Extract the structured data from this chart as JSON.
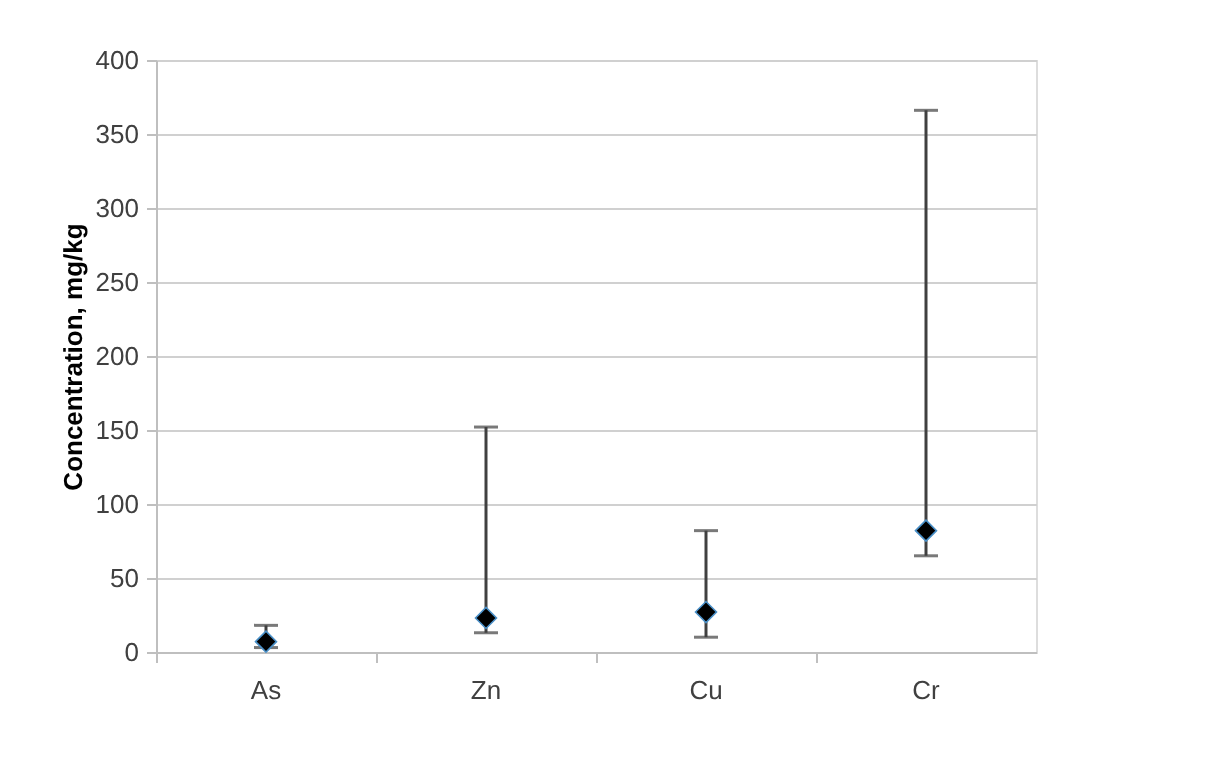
{
  "chart_data": {
    "type": "scatter",
    "ylabel": "Concentration, mg/kg",
    "categories": [
      "As",
      "Zn",
      "Cu",
      "Cr"
    ],
    "series": [
      {
        "color": "#000000",
        "values": [
          7,
          23,
          27,
          82
        ],
        "errors": [
          [
            3,
            18
          ],
          [
            13,
            152
          ],
          [
            10,
            82
          ],
          [
            65,
            366
          ]
        ]
      }
    ],
    "marker": "diamond",
    "ylim": [
      0,
      400
    ],
    "yticks": [
      0,
      50,
      100,
      150,
      200,
      250,
      300,
      350,
      400
    ],
    "grid": "y"
  }
}
